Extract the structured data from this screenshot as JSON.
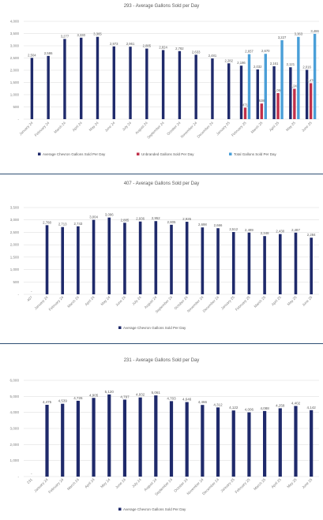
{
  "chart_data": [
    {
      "type": "bar",
      "title": "293 - Average Gallons Sold per Day",
      "xlabel": "",
      "ylabel": "",
      "ylim": [
        0,
        4000
      ],
      "yticks": [
        "-",
        "500",
        "1,000",
        "1,500",
        "2,000",
        "2,500",
        "3,000",
        "3,500",
        "4,000"
      ],
      "grid": true,
      "legend": "bottom",
      "categories": [
        "January 24",
        "February 24",
        "March 24",
        "April 24",
        "May 24",
        "June 24",
        "July 24",
        "August 24",
        "September 24",
        "October 24",
        "November 24",
        "December 24",
        "January 25",
        "February 25",
        "March 25",
        "April 25",
        "May 25",
        "June 25"
      ],
      "series": [
        {
          "name": "Average Chevron Gallons Sold Per Day",
          "color": "#1f2a6b",
          "values": [
            2504,
            2586,
            3277,
            3330,
            3365,
            2973,
            2961,
            2885,
            2824,
            2782,
            2633,
            2481,
            2282,
            2186,
            2032,
            2161,
            2121,
            2016
          ],
          "labels": [
            "2,504",
            "2,586",
            "3,277",
            "3,330",
            "3,365",
            "2,973",
            "2,961",
            "2,885",
            "2,824",
            "2,782",
            "2,633",
            "2,481",
            "2,282",
            "2,186",
            "2,032",
            "2,161",
            "2,121",
            "2,016"
          ]
        },
        {
          "name": "Unbranded Gallons Sold Per Day",
          "color": "#c0304a",
          "values": [
            null,
            null,
            null,
            null,
            null,
            null,
            null,
            null,
            null,
            null,
            null,
            null,
            null,
            471,
            638,
            1066,
            1242,
            1470
          ],
          "labels": [
            "",
            "",
            "",
            "",
            "",
            "",
            "",
            "",
            "",
            "",
            "",
            "",
            "",
            "471",
            "638",
            "1,066",
            "1,242",
            "1,470"
          ]
        },
        {
          "name": "Total Gallons Sold Per Day",
          "color": "#4a9fd8",
          "values": [
            null,
            null,
            null,
            null,
            null,
            null,
            null,
            null,
            null,
            null,
            null,
            null,
            null,
            2657,
            2670,
            3227,
            3363,
            3486
          ],
          "labels": [
            "",
            "",
            "",
            "",
            "",
            "",
            "",
            "",
            "",
            "",
            "",
            "",
            "",
            "2,657",
            "2,670",
            "3,227",
            "3,363",
            "3,486"
          ]
        }
      ]
    },
    {
      "type": "bar",
      "title": "407 - Average Gallons Sold per Day",
      "xlabel": "",
      "ylabel": "",
      "ylim": [
        0,
        3500
      ],
      "yticks": [
        "-",
        "500",
        "1,000",
        "1,500",
        "2,000",
        "2,500",
        "3,000",
        "3,500"
      ],
      "grid": true,
      "legend": "bottom",
      "categories": [
        "407",
        "January 24",
        "February 24",
        "March 24",
        "April 24",
        "May 24",
        "June 24",
        "July 24",
        "August 24",
        "September 24",
        "October 24",
        "November 24",
        "December 24",
        "January 25",
        "February 25",
        "March 25",
        "April 25",
        "May 25",
        "June 25"
      ],
      "series": [
        {
          "name": "Average Chevron Gallons Sold Per Day",
          "color": "#1f2a6b",
          "values": [
            null,
            2788,
            2713,
            2743,
            3004,
            3096,
            2885,
            2936,
            2952,
            2805,
            2926,
            2698,
            2666,
            2512,
            2489,
            2348,
            2430,
            2487,
            2284
          ],
          "labels": [
            "-",
            "2,788",
            "2,713",
            "2,743",
            "3,004",
            "3,096",
            "2,885",
            "2,936",
            "2,952",
            "2,805",
            "2,926",
            "2,698",
            "2,666",
            "2,512",
            "2,489",
            "2,348",
            "2,430",
            "2,487",
            "2,284"
          ]
        }
      ]
    },
    {
      "type": "bar",
      "title": "231 - Average Gallons Sold per Day",
      "xlabel": "",
      "ylabel": "",
      "ylim": [
        0,
        6000
      ],
      "yticks": [
        "-",
        "1,000",
        "2,000",
        "3,000",
        "4,000",
        "5,000",
        "6,000"
      ],
      "grid": true,
      "legend": "bottom",
      "categories": [
        "231",
        "January 24",
        "February 24",
        "March 24",
        "April 24",
        "May 24",
        "June 24",
        "July 24",
        "August 24",
        "September 24",
        "October 24",
        "November 24",
        "December 24",
        "January 25",
        "February 25",
        "March 25",
        "April 25",
        "May 25",
        "June 25"
      ],
      "series": [
        {
          "name": "Average Chevron Gallons Sold Per Day",
          "color": "#1f2a6b",
          "values": [
            null,
            4475,
            4539,
            4726,
            4905,
            5120,
            4797,
            4932,
            5061,
            4703,
            4646,
            4466,
            4312,
            4122,
            4006,
            4088,
            4258,
            4402,
            4142
          ],
          "labels": [
            "-",
            "4,475",
            "4,539",
            "4,726",
            "4,905",
            "5,120",
            "4,797",
            "4,932",
            "5,061",
            "4,703",
            "4,646",
            "4,466",
            "4,312",
            "4,122",
            "4,006",
            "4,088",
            "4,258",
            "4,402",
            "4,142"
          ]
        }
      ]
    }
  ]
}
